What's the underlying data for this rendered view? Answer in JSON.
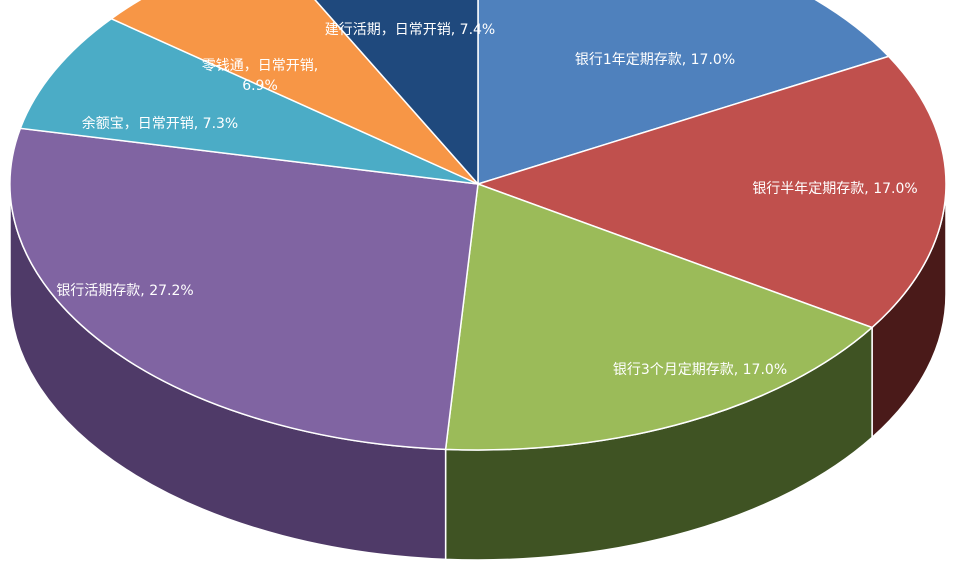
{
  "chart_data": {
    "type": "pie",
    "title": "",
    "slices": [
      {
        "label": "银行1年定期存款",
        "value": 17.0,
        "value_label": "17.0%",
        "color": "#4f81bd",
        "side_color": "#2b4c77"
      },
      {
        "label": "银行半年定期存款",
        "value": 17.0,
        "value_label": "17.0%",
        "color": "#c0504d",
        "side_color": "#4a1a19"
      },
      {
        "label": "银行3个月定期存款",
        "value": 17.0,
        "value_label": "17.0%",
        "color": "#9bbb59",
        "side_color": "#3f5323"
      },
      {
        "label": "银行活期存款",
        "value": 27.2,
        "value_label": "27.2%",
        "color": "#8064a2",
        "side_color": "#4f3a68"
      },
      {
        "label": "余额宝，日常开销",
        "value": 7.3,
        "value_label": "7.3%",
        "color": "#4bacc6",
        "side_color": "#2a6f80"
      },
      {
        "label": "零钱通，日常开销",
        "value": 6.9,
        "value_label": "6.9%",
        "color": "#f79646",
        "side_color": "#a35a1f"
      },
      {
        "label": "建行活期，日常开销",
        "value": 7.4,
        "value_label": "7.4%",
        "color": "#1f497d",
        "side_color": "#112843"
      }
    ]
  }
}
